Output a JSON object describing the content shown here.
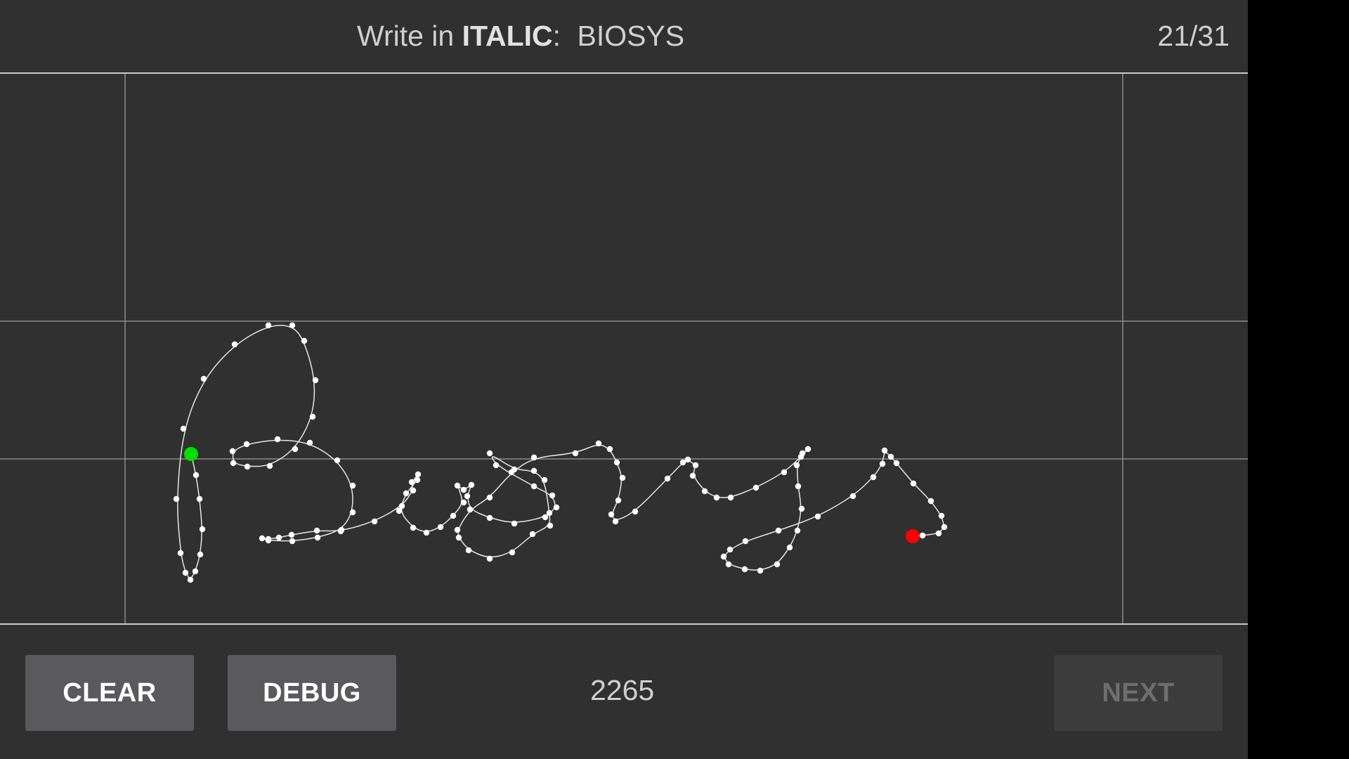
{
  "header": {
    "prompt_prefix": "Write in",
    "style_name": "ITALIC",
    "prompt_colon": ":",
    "target_word": "BIOSYS",
    "progress": "21/31"
  },
  "canvas": {
    "stroke_color": "#e6e6e6",
    "point_color": "#ffffff",
    "start_marker_color": "#00e000",
    "end_marker_color": "#ff0000",
    "guide_color": "#8a8a8a",
    "background": "#303030"
  },
  "footer": {
    "clear_label": "CLEAR",
    "debug_label": "DEBUG",
    "score": "2265",
    "next_label": "NEXT",
    "next_enabled": false
  },
  "colors": {
    "app_background": "#303030",
    "button_active": "#5a5a5c",
    "button_disabled": "#3c3c3c"
  }
}
